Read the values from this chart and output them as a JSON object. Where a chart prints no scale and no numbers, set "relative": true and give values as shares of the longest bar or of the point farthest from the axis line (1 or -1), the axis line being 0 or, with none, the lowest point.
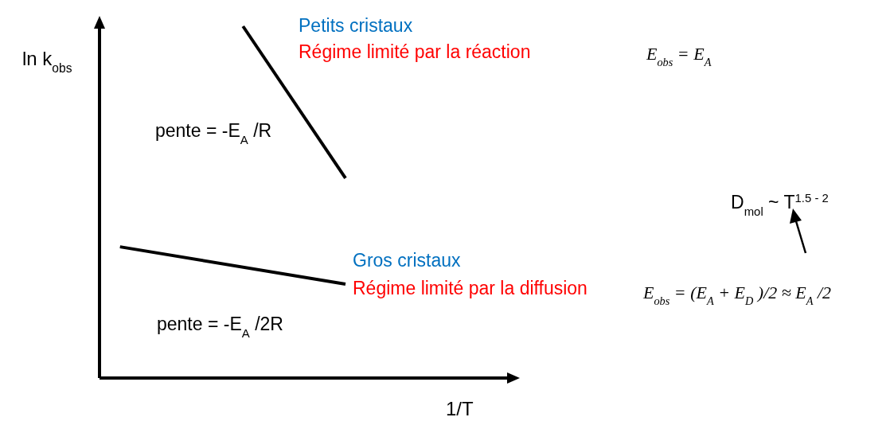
{
  "chart_data": {
    "type": "line",
    "relative": true,
    "xlabel": "1/T",
    "ylabel": "ln k$_{obs}$",
    "marker": "none",
    "line_style": "solid",
    "categories": [
      null,
      null,
      null,
      null,
      null,
      null,
      null,
      null,
      null,
      null,
      null,
      null,
      null,
      null,
      null,
      null,
      null,
      null,
      null,
      null,
      null
    ],
    "series": [
      {
        "color": "#000000",
        "values": [
          null,
          null,
          null,
          null,
          null,
          null,
          null,
          1,
          null,
          null,
          null,
          null,
          0.568,
          null,
          null,
          null,
          null,
          null,
          null,
          null,
          null
        ]
      },
      {
        "color": "#000000",
        "values": [
          null,
          0.373,
          null,
          null,
          null,
          null,
          null,
          null,
          null,
          null,
          null,
          null,
          0.267,
          null,
          null,
          null,
          null,
          null,
          null,
          null,
          null
        ]
      }
    ],
    "annotations": [
      "Petits cristaux",
      "Régime limité par la réaction",
      "pente = -E$_{A}$/R",
      "Gros cristaux",
      "Régime limité par la diffusion",
      "pente = -E$_{A}$/2R",
      "E$_{obs}$ = E$_{A}$",
      "D$_{mol}$ ~ T$^{1.5 - 2}$",
      "E$_{obs}$ = (E$_{A}$ + E$_{D}$)/2 ≈ E$_{A}$/2"
    ]
  }
}
